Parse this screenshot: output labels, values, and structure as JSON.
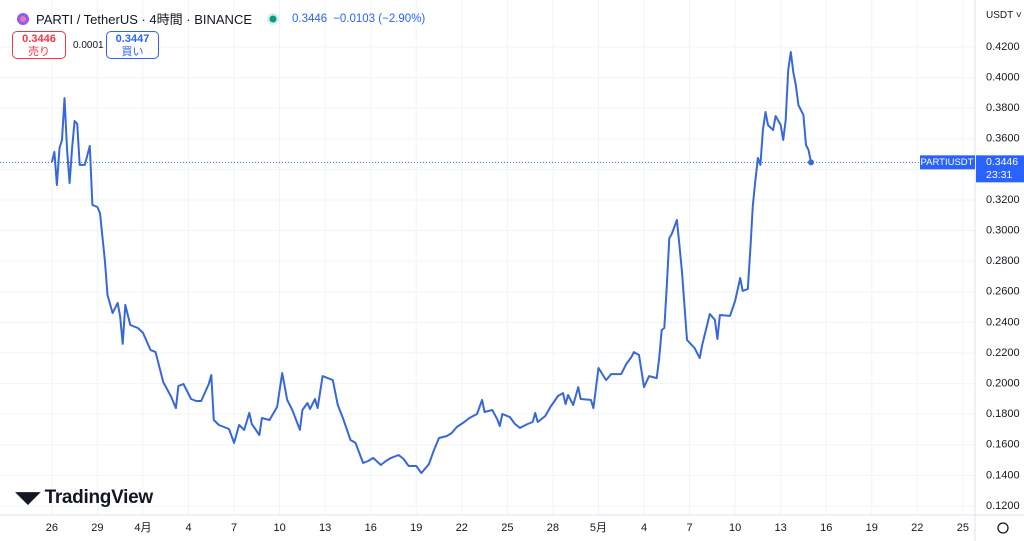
{
  "header": {
    "symbol": "PARTI / TetherUS · 4時間 · BINANCE",
    "price": "0.3446",
    "change": "−0.0103 (−2.90%)",
    "sell_price": "0.3446",
    "sell_label": "売り",
    "spread": "0.0001",
    "buy_price": "0.3447",
    "buy_label": "買い",
    "currency": "USDT",
    "brand": "TradingView"
  },
  "chart_data": {
    "type": "line",
    "color": "#3868d8",
    "grid": true,
    "last_label": {
      "name": "PARTIUSDT",
      "price": "0.3446",
      "countdown": "23:31"
    },
    "xlim": [
      -20.5,
      364.8
    ],
    "xticks": [
      {
        "value": 0,
        "label": "26"
      },
      {
        "value": 18,
        "label": "29"
      },
      {
        "value": 36,
        "label": "4月"
      },
      {
        "value": 54,
        "label": "4"
      },
      {
        "value": 72,
        "label": "7"
      },
      {
        "value": 90,
        "label": "10"
      },
      {
        "value": 108,
        "label": "13"
      },
      {
        "value": 126,
        "label": "16"
      },
      {
        "value": 144,
        "label": "19"
      },
      {
        "value": 162,
        "label": "22"
      },
      {
        "value": 180,
        "label": "25"
      },
      {
        "value": 198,
        "label": "28"
      },
      {
        "value": 216,
        "label": "5月"
      },
      {
        "value": 234,
        "label": "4"
      },
      {
        "value": 252,
        "label": "7"
      },
      {
        "value": 270,
        "label": "10"
      },
      {
        "value": 288,
        "label": "13"
      },
      {
        "value": 306,
        "label": "16"
      },
      {
        "value": 324,
        "label": "19"
      },
      {
        "value": 342,
        "label": "22"
      },
      {
        "value": 360,
        "label": "25"
      }
    ],
    "ylim": [
      0.1141,
      0.4507
    ],
    "yticks": [
      {
        "value": 0.12,
        "label": "0.1200"
      },
      {
        "value": 0.14,
        "label": "0.1400"
      },
      {
        "value": 0.16,
        "label": "0.1600"
      },
      {
        "value": 0.18,
        "label": "0.1800"
      },
      {
        "value": 0.2,
        "label": "0.2000"
      },
      {
        "value": 0.22,
        "label": "0.2200"
      },
      {
        "value": 0.24,
        "label": "0.2400"
      },
      {
        "value": 0.26,
        "label": "0.2600"
      },
      {
        "value": 0.28,
        "label": "0.2800"
      },
      {
        "value": 0.3,
        "label": "0.3000"
      },
      {
        "value": 0.32,
        "label": "0.3200"
      },
      {
        "value": 0.34,
        "label": "0.3400"
      },
      {
        "value": 0.36,
        "label": "0.3600"
      },
      {
        "value": 0.38,
        "label": "0.3800"
      },
      {
        "value": 0.4,
        "label": "0.4000"
      },
      {
        "value": 0.42,
        "label": "0.4200"
      }
    ],
    "x": [
      0,
      1,
      2,
      3,
      4,
      5,
      6,
      7,
      8,
      9,
      10,
      11,
      13,
      15,
      16,
      18,
      19,
      21,
      22,
      24,
      26,
      27,
      28,
      29,
      31,
      34,
      36,
      39,
      41,
      44,
      47,
      49,
      50,
      52,
      55,
      57,
      59,
      62,
      63,
      64,
      66,
      70,
      72,
      74,
      76,
      78,
      79,
      82,
      83,
      86,
      89,
      91,
      93,
      95,
      98,
      99,
      101,
      102,
      104,
      105,
      107,
      111,
      113,
      115,
      118,
      120,
      123,
      125,
      127,
      130,
      132,
      134,
      137,
      139,
      141,
      144,
      146,
      149,
      151,
      153,
      156,
      158,
      160,
      163,
      165,
      168,
      170,
      171,
      174,
      176,
      177,
      178,
      181,
      183,
      185,
      188,
      190,
      191,
      192,
      195,
      197,
      200,
      202,
      203,
      204,
      206,
      208,
      209,
      213,
      214,
      216,
      219,
      221,
      225,
      227,
      229,
      230,
      232,
      234,
      236,
      239,
      240,
      241,
      242,
      243,
      244,
      245,
      247,
      248,
      249,
      250,
      251,
      254,
      256,
      257,
      260,
      262,
      263,
      264,
      268,
      270,
      272,
      273,
      275,
      276,
      277,
      278,
      279,
      280,
      281,
      282,
      283,
      285,
      286,
      288,
      289,
      290,
      291,
      292,
      293,
      294,
      295,
      297,
      298,
      299,
      300
    ],
    "values": [
      0.3448,
      0.3514,
      0.3298,
      0.354,
      0.3592,
      0.3866,
      0.3527,
      0.3311,
      0.354,
      0.3716,
      0.3697,
      0.3429,
      0.3429,
      0.3553,
      0.3167,
      0.3154,
      0.3115,
      0.2795,
      0.2579,
      0.2461,
      0.2527,
      0.2435,
      0.2259,
      0.2514,
      0.2383,
      0.2363,
      0.2331,
      0.2219,
      0.2206,
      0.201,
      0.1919,
      0.184,
      0.1984,
      0.1997,
      0.1899,
      0.1886,
      0.1886,
      0.1997,
      0.2056,
      0.1762,
      0.1729,
      0.1703,
      0.1612,
      0.1729,
      0.1697,
      0.1808,
      0.1736,
      0.1664,
      0.1775,
      0.1762,
      0.1847,
      0.2069,
      0.1893,
      0.1827,
      0.1697,
      0.1827,
      0.1873,
      0.1834,
      0.1899,
      0.184,
      0.2049,
      0.2023,
      0.186,
      0.1775,
      0.1631,
      0.1612,
      0.1481,
      0.1494,
      0.1514,
      0.1468,
      0.1494,
      0.1514,
      0.1533,
      0.1507,
      0.1461,
      0.1461,
      0.1415,
      0.1474,
      0.1566,
      0.1644,
      0.1657,
      0.1677,
      0.1716,
      0.1749,
      0.1775,
      0.1801,
      0.1893,
      0.1814,
      0.1827,
      0.1768,
      0.1723,
      0.1801,
      0.1781,
      0.1736,
      0.171,
      0.1736,
      0.1749,
      0.1808,
      0.1749,
      0.1788,
      0.1847,
      0.1919,
      0.1938,
      0.1866,
      0.1925,
      0.186,
      0.1977,
      0.1899,
      0.1893,
      0.184,
      0.2102,
      0.2023,
      0.2062,
      0.2062,
      0.2128,
      0.2174,
      0.2206,
      0.2187,
      0.1977,
      0.2049,
      0.2036,
      0.2167,
      0.235,
      0.2363,
      0.2638,
      0.2951,
      0.2978,
      0.3069,
      0.2906,
      0.2729,
      0.2507,
      0.2285,
      0.2232,
      0.2167,
      0.2252,
      0.2455,
      0.2416,
      0.2291,
      0.2448,
      0.2442,
      0.254,
      0.269,
      0.2605,
      0.2618,
      0.2873,
      0.3161,
      0.333,
      0.3474,
      0.3429,
      0.3657,
      0.3775,
      0.369,
      0.3657,
      0.3749,
      0.369,
      0.3592,
      0.3723,
      0.4049,
      0.4167,
      0.4036,
      0.3951,
      0.3821,
      0.3755,
      0.3559,
      0.3527,
      0.3446
    ]
  }
}
